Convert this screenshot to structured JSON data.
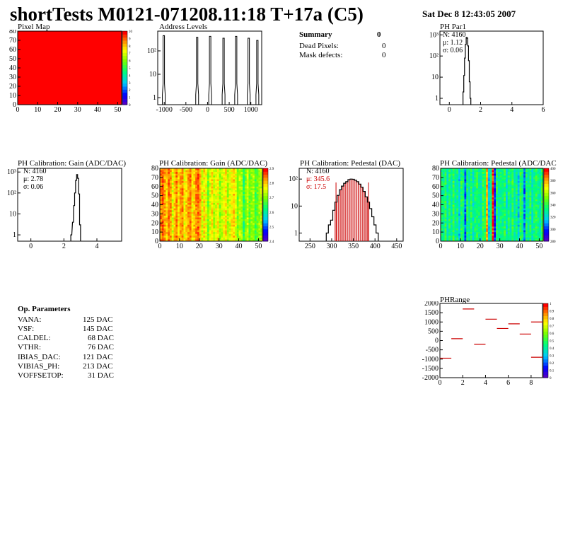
{
  "header": {
    "title": "shortTests M0121-071208.11:18 T+17a (C5)",
    "date": "Sat Dec  8 12:43:05 2007"
  },
  "summary": {
    "title": "Summary",
    "title_value": "0",
    "rows": [
      {
        "label": "Dead Pixels:",
        "value": "0"
      },
      {
        "label": "Mask defects:",
        "value": "0"
      }
    ]
  },
  "op_parameters": {
    "title": "Op. Parameters",
    "rows": [
      {
        "label": "VANA:",
        "value": "125 DAC"
      },
      {
        "label": "VSF:",
        "value": "145 DAC"
      },
      {
        "label": "CALDEL:",
        "value": "68 DAC"
      },
      {
        "label": "VTHR:",
        "value": "76 DAC"
      },
      {
        "label": "IBIAS_DAC:",
        "value": "121 DAC"
      },
      {
        "label": "VIBIAS_PH:",
        "value": "213 DAC"
      },
      {
        "label": "VOFFSETOP:",
        "value": "31 DAC"
      }
    ]
  },
  "colors": {
    "pixel_map": "#ff0000",
    "hist_line": "#000000",
    "pedestal_fill": "#cc0000",
    "pedestal_stats": "#cc0000",
    "phrange_marks": "#cc0000"
  },
  "chart_data": [
    {
      "id": "pixel-map",
      "type": "heatmap",
      "title": "Pixel Map",
      "xlim": [
        0,
        52
      ],
      "ylim": [
        0,
        80
      ],
      "x_ticks": [
        "0",
        "10",
        "20",
        "30",
        "40",
        "50"
      ],
      "y_ticks": [
        "0",
        "10",
        "20",
        "30",
        "40",
        "50",
        "60",
        "70",
        "80"
      ],
      "z_ticks": [
        "0",
        "1",
        "2",
        "3",
        "4",
        "5",
        "6",
        "7",
        "8",
        "9",
        "10"
      ],
      "zlim": [
        0,
        10
      ],
      "uniform_value": 10
    },
    {
      "id": "address-levels",
      "type": "line",
      "title": "Address Levels",
      "xlim": [
        -1150,
        1250
      ],
      "y_log": true,
      "ylim": [
        0.5,
        700
      ],
      "x_ticks": [
        "-1000",
        "-500",
        "0",
        "500",
        "1000"
      ],
      "y_ticks": [
        "1",
        "10",
        "10²"
      ],
      "peaks": [
        {
          "x": -1010,
          "y": 450
        },
        {
          "x": -240,
          "y": 380
        },
        {
          "x": 60,
          "y": 420
        },
        {
          "x": 370,
          "y": 350
        },
        {
          "x": 660,
          "y": 420
        },
        {
          "x": 950,
          "y": 350
        },
        {
          "x": 1150,
          "y": 280
        }
      ]
    },
    {
      "id": "ph-par1",
      "type": "line",
      "title": "PH Par1",
      "xlim": [
        -0.6,
        6
      ],
      "y_log": true,
      "ylim": [
        0.5,
        1500
      ],
      "x_ticks": [
        "0",
        "2",
        "4",
        "6"
      ],
      "y_ticks": [
        "1",
        "10",
        "10²",
        "10³"
      ],
      "stats": [
        "N: 4160",
        "μ: 1.12",
        "σ: 0.06"
      ],
      "bins": [
        {
          "x": 0.9,
          "y": 2
        },
        {
          "x": 0.95,
          "y": 12
        },
        {
          "x": 1.0,
          "y": 80
        },
        {
          "x": 1.05,
          "y": 350
        },
        {
          "x": 1.1,
          "y": 750
        },
        {
          "x": 1.15,
          "y": 700
        },
        {
          "x": 1.2,
          "y": 300
        },
        {
          "x": 1.25,
          "y": 60
        },
        {
          "x": 1.3,
          "y": 6
        },
        {
          "x": 1.35,
          "y": 1
        }
      ]
    },
    {
      "id": "ph-gain-1d",
      "type": "line",
      "title": "PH Calibration: Gain (ADC/DAC)",
      "xlim": [
        -0.8,
        5.5
      ],
      "y_log": true,
      "ylim": [
        0.5,
        1500
      ],
      "x_ticks": [
        "0",
        "2",
        "4"
      ],
      "y_ticks": [
        "1",
        "10",
        "10²",
        "10³"
      ],
      "stats": [
        "N: 4160",
        "μ: 2.78",
        "σ: 0.06"
      ],
      "bins": [
        {
          "x": 2.45,
          "y": 1
        },
        {
          "x": 2.55,
          "y": 4
        },
        {
          "x": 2.62,
          "y": 25
        },
        {
          "x": 2.68,
          "y": 100
        },
        {
          "x": 2.74,
          "y": 400
        },
        {
          "x": 2.8,
          "y": 750
        },
        {
          "x": 2.86,
          "y": 500
        },
        {
          "x": 2.92,
          "y": 90
        },
        {
          "x": 2.98,
          "y": 3
        }
      ]
    },
    {
      "id": "ph-gain-map",
      "type": "heatmap",
      "title": "PH Calibration: Gain (ADC/DAC)",
      "xlim": [
        0,
        52
      ],
      "ylim": [
        0,
        80
      ],
      "x_ticks": [
        "0",
        "10",
        "20",
        "30",
        "40",
        "50"
      ],
      "y_ticks": [
        "0",
        "10",
        "20",
        "30",
        "40",
        "50",
        "60",
        "70",
        "80"
      ],
      "zlim": [
        2.35,
        2.9
      ],
      "z_ticks": [
        "2.4",
        "2.5",
        "2.6",
        "2.7",
        "2.8",
        "2.9"
      ]
    },
    {
      "id": "ph-pedestal-1d",
      "type": "line",
      "title": "PH Calibration: Pedestal (DAC)",
      "xlim": [
        225,
        465
      ],
      "y_log": true,
      "ylim": [
        0.5,
        250
      ],
      "x_ticks": [
        "250",
        "300",
        "350",
        "400",
        "450"
      ],
      "y_ticks": [
        "1",
        "10",
        "10²"
      ],
      "stats": [
        "N: 4160",
        "μ: 345.6",
        "σ: 17.5"
      ],
      "fit_range": [
        310,
        385
      ],
      "bins": [
        {
          "x": 290,
          "y": 1
        },
        {
          "x": 295,
          "y": 2
        },
        {
          "x": 300,
          "y": 3
        },
        {
          "x": 305,
          "y": 7
        },
        {
          "x": 310,
          "y": 14
        },
        {
          "x": 315,
          "y": 25
        },
        {
          "x": 320,
          "y": 40
        },
        {
          "x": 325,
          "y": 55
        },
        {
          "x": 330,
          "y": 70
        },
        {
          "x": 335,
          "y": 80
        },
        {
          "x": 340,
          "y": 95
        },
        {
          "x": 345,
          "y": 100
        },
        {
          "x": 350,
          "y": 98
        },
        {
          "x": 355,
          "y": 90
        },
        {
          "x": 360,
          "y": 80
        },
        {
          "x": 365,
          "y": 65
        },
        {
          "x": 370,
          "y": 50
        },
        {
          "x": 375,
          "y": 35
        },
        {
          "x": 380,
          "y": 22
        },
        {
          "x": 385,
          "y": 14
        },
        {
          "x": 390,
          "y": 8
        },
        {
          "x": 395,
          "y": 4
        },
        {
          "x": 400,
          "y": 2
        },
        {
          "x": 405,
          "y": 1
        }
      ]
    },
    {
      "id": "ph-pedestal-map",
      "type": "heatmap",
      "title": "PH Calibration: Pedestal (ADC/DAC",
      "xlim": [
        0,
        52
      ],
      "ylim": [
        0,
        80
      ],
      "x_ticks": [
        "0",
        "10",
        "20",
        "30",
        "40",
        "50"
      ],
      "y_ticks": [
        "0",
        "10",
        "20",
        "30",
        "40",
        "50",
        "60",
        "70",
        "80"
      ],
      "zlim": [
        270,
        420
      ],
      "z_ticks": [
        "280",
        "300",
        "320",
        "340",
        "360",
        "380",
        "400"
      ]
    },
    {
      "id": "ph-range",
      "type": "scatter",
      "title": "PHRange",
      "xlim": [
        0,
        9
      ],
      "ylim": [
        -2000,
        2000
      ],
      "x_ticks": [
        "0",
        "2",
        "4",
        "6",
        "8"
      ],
      "y_ticks": [
        "2000",
        "1500",
        "1000",
        "500",
        "0",
        "-500",
        "-1000",
        "-1500",
        "-2000"
      ],
      "z_ticks": [
        "0",
        "0.1",
        "0.2",
        "0.3",
        "0.4",
        "0.5",
        "0.6",
        "0.7",
        "0.8",
        "0.9",
        "1"
      ],
      "segments": [
        {
          "x": 0.5,
          "y": -950
        },
        {
          "x": 1.5,
          "y": 100
        },
        {
          "x": 2.5,
          "y": 1700
        },
        {
          "x": 3.5,
          "y": -200
        },
        {
          "x": 4.5,
          "y": 1150
        },
        {
          "x": 5.5,
          "y": 650
        },
        {
          "x": 6.5,
          "y": 900
        },
        {
          "x": 7.5,
          "y": 350
        },
        {
          "x": 8.5,
          "y": 1000
        },
        {
          "x": 8.5,
          "y": -900
        }
      ]
    }
  ]
}
